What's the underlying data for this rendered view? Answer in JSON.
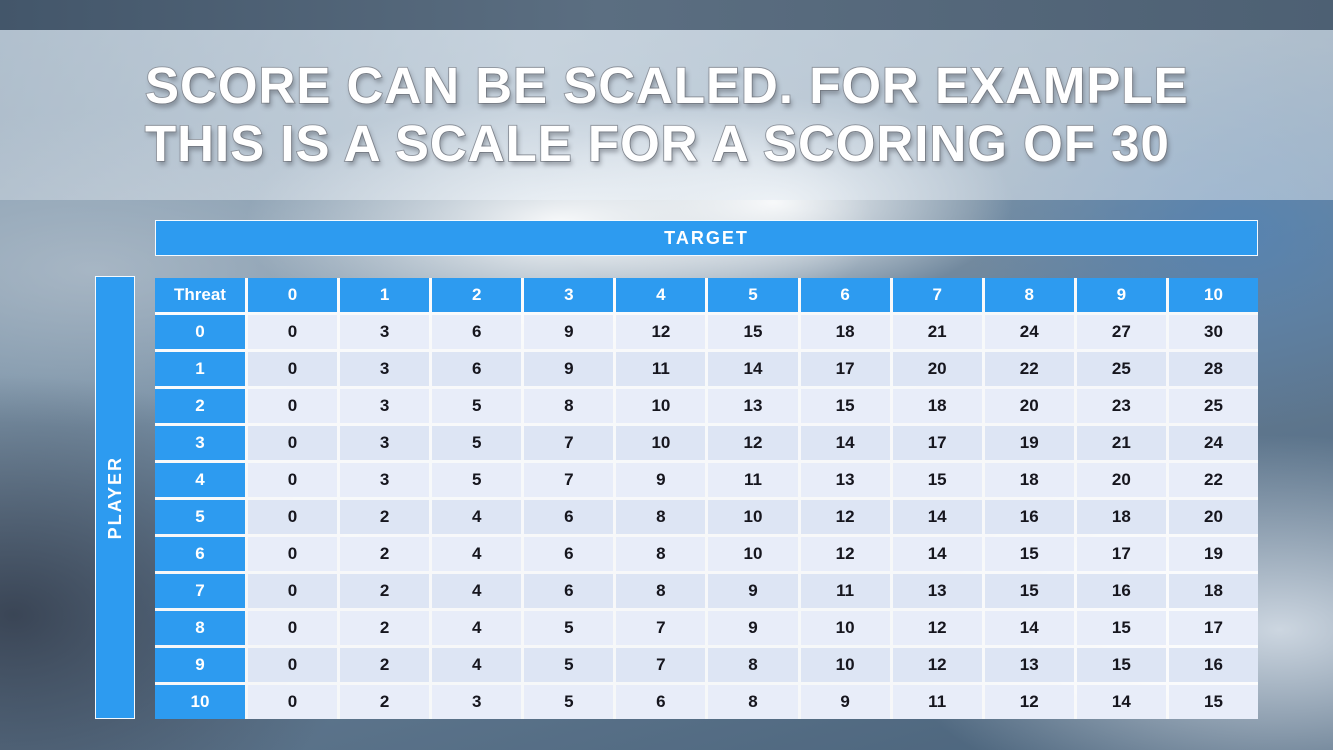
{
  "slide": {
    "title_line1": "SCORE CAN BE SCALED. FOR EXAMPLE",
    "title_line2": "THIS IS A SCALE FOR A SCORING OF 30"
  },
  "table": {
    "target_label": "TARGET",
    "player_label": "PLAYER",
    "corner_label": "Threat",
    "column_headers": [
      "0",
      "1",
      "2",
      "3",
      "4",
      "5",
      "6",
      "7",
      "8",
      "9",
      "10"
    ],
    "row_headers": [
      "0",
      "1",
      "2",
      "3",
      "4",
      "5",
      "6",
      "7",
      "8",
      "9",
      "10"
    ],
    "rows": [
      [
        0,
        3,
        6,
        9,
        12,
        15,
        18,
        21,
        24,
        27,
        30
      ],
      [
        0,
        3,
        6,
        9,
        11,
        14,
        17,
        20,
        22,
        25,
        28
      ],
      [
        0,
        3,
        5,
        8,
        10,
        13,
        15,
        18,
        20,
        23,
        25
      ],
      [
        0,
        3,
        5,
        7,
        10,
        12,
        14,
        17,
        19,
        21,
        24
      ],
      [
        0,
        3,
        5,
        7,
        9,
        11,
        13,
        15,
        18,
        20,
        22
      ],
      [
        0,
        2,
        4,
        6,
        8,
        10,
        12,
        14,
        16,
        18,
        20
      ],
      [
        0,
        2,
        4,
        6,
        8,
        10,
        12,
        14,
        15,
        17,
        19
      ],
      [
        0,
        2,
        4,
        6,
        8,
        9,
        11,
        13,
        15,
        16,
        18
      ],
      [
        0,
        2,
        4,
        5,
        7,
        9,
        10,
        12,
        14,
        15,
        17
      ],
      [
        0,
        2,
        4,
        5,
        7,
        8,
        10,
        12,
        13,
        15,
        16
      ],
      [
        0,
        2,
        3,
        5,
        6,
        8,
        9,
        11,
        12,
        14,
        15
      ]
    ]
  },
  "colors": {
    "accent_blue": "#2D9BF0",
    "row_light": "#E8EDF9",
    "row_alt": "#DDE5F4",
    "cell_text": "#16161E"
  }
}
